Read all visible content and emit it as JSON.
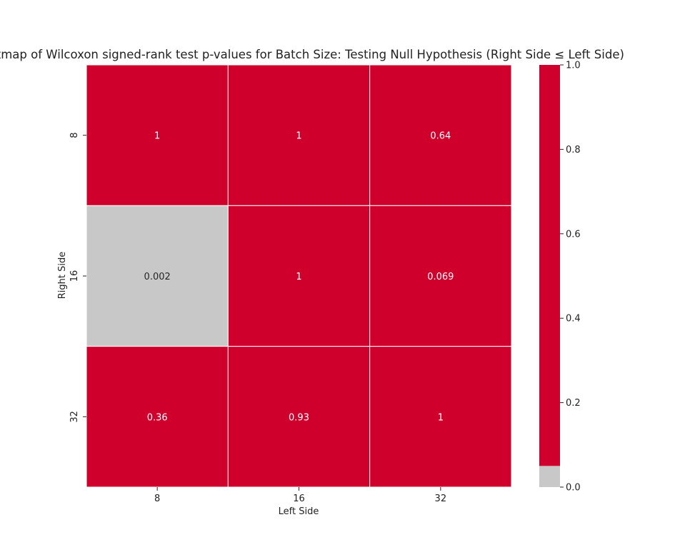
{
  "chart_data": {
    "type": "heatmap",
    "title": "Heatmap of Wilcoxon signed-rank test p-values for Batch Size: Testing Null Hypothesis (Right Side ≤ Left Side)",
    "xlabel": "Left Side",
    "ylabel": "Right Side",
    "x_categories": [
      "8",
      "16",
      "32"
    ],
    "y_categories": [
      "8",
      "16",
      "32"
    ],
    "values": [
      [
        1,
        1,
        0.64
      ],
      [
        0.002,
        1,
        0.069
      ],
      [
        0.36,
        0.93,
        1
      ]
    ],
    "cell_labels": [
      [
        "1",
        "1",
        "0.64"
      ],
      [
        "0.002",
        "1",
        "0.069"
      ],
      [
        "0.36",
        "0.93",
        "1"
      ]
    ],
    "colorbar": {
      "range": [
        0.0,
        1.0
      ],
      "ticks": [
        "0.0",
        "0.2",
        "0.4",
        "0.6",
        "0.8",
        "1.0"
      ],
      "threshold": 0.05,
      "below_color": "#c8c8c8",
      "above_color": "#d0002c"
    }
  }
}
